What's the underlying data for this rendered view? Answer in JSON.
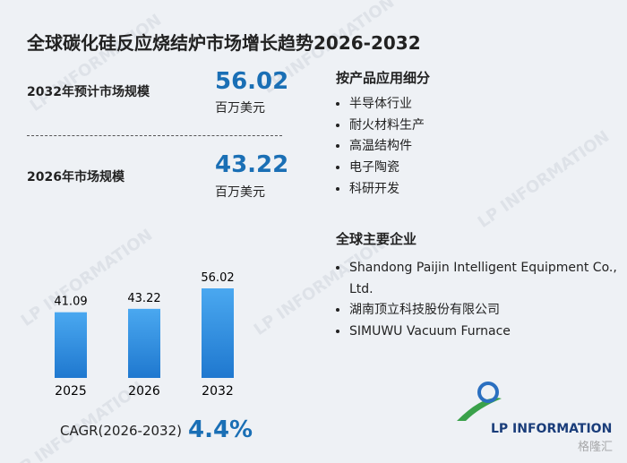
{
  "title": "全球碳化硅反应烧结炉市场增长趋势2026-2032",
  "stats": [
    {
      "label": "2032年预计市场规模",
      "value": "56.02",
      "unit": "百万美元"
    },
    {
      "label": "2026年市场规模",
      "value": "43.22",
      "unit": "百万美元"
    }
  ],
  "segments": {
    "heading": "按产品应用细分",
    "items": [
      "半导体行业",
      "耐火材料生产",
      "高温结构件",
      "电子陶瓷",
      "科研开发"
    ]
  },
  "companies": {
    "heading": "全球主要企业",
    "items": [
      "Shandong Paijin Intelligent Equipment Co., Ltd.",
      "湖南顶立科技股份有限公司",
      "SIMUWU Vacuum Furnace"
    ]
  },
  "cagr": {
    "label": "CAGR(2026-2032)",
    "value": "4.4%"
  },
  "logo": "LP INFORMATION",
  "watermark": "LP INFORMATION",
  "source_watermark": "格隆汇",
  "chart_data": {
    "type": "bar",
    "categories": [
      "2025",
      "2026",
      "2032"
    ],
    "values": [
      41.09,
      43.22,
      56.02
    ],
    "color": "#2f8fe0"
  }
}
